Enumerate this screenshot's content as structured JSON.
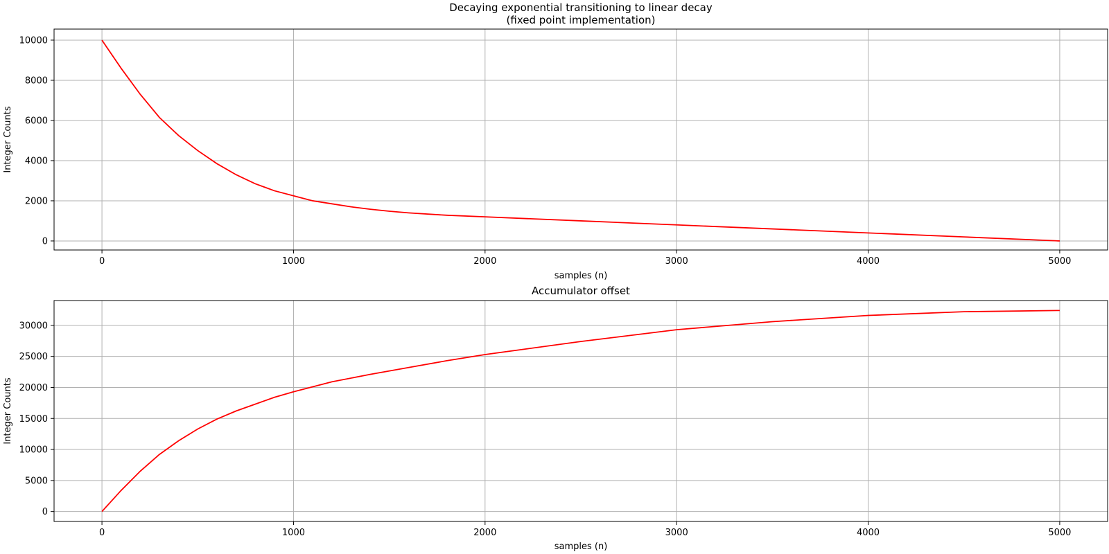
{
  "chart_data": [
    {
      "type": "line",
      "title": "Decaying exponential transitioning to linear decay",
      "subtitle": "(fixed point implementation)",
      "xlabel": "samples (n)",
      "ylabel": "Integer Counts",
      "xlim": [
        -250,
        5250
      ],
      "ylim": [
        -450,
        10550
      ],
      "xticks": [
        0,
        1000,
        2000,
        3000,
        4000,
        5000
      ],
      "yticks": [
        0,
        2000,
        4000,
        6000,
        8000,
        10000
      ],
      "grid": true,
      "series": [
        {
          "color": "#ff0000",
          "x": [
            0,
            100,
            200,
            300,
            400,
            500,
            600,
            700,
            800,
            900,
            1000,
            1100,
            1200,
            1300,
            1400,
            1500,
            1600,
            1800,
            2000,
            2500,
            3000,
            3500,
            4000,
            4500,
            5000
          ],
          "y": [
            10000,
            8600,
            7300,
            6150,
            5250,
            4500,
            3850,
            3300,
            2850,
            2500,
            2250,
            2000,
            1850,
            1700,
            1580,
            1480,
            1400,
            1280,
            1200,
            1000,
            800,
            600,
            400,
            200,
            0
          ]
        }
      ]
    },
    {
      "type": "line",
      "title": "Accumulator offset",
      "xlabel": "samples (n)",
      "ylabel": "Integer Counts",
      "xlim": [
        -250,
        5250
      ],
      "ylim": [
        -1600,
        34000
      ],
      "xticks": [
        0,
        1000,
        2000,
        3000,
        4000,
        5000
      ],
      "yticks": [
        0,
        5000,
        10000,
        15000,
        20000,
        25000,
        30000
      ],
      "grid": true,
      "series": [
        {
          "color": "#ff0000",
          "x": [
            0,
            100,
            200,
            300,
            400,
            500,
            600,
            700,
            800,
            900,
            1000,
            1200,
            1400,
            1600,
            1800,
            2000,
            2500,
            3000,
            3500,
            4000,
            4500,
            5000
          ],
          "y": [
            0,
            3400,
            6500,
            9200,
            11400,
            13300,
            14900,
            16200,
            17300,
            18400,
            19300,
            20900,
            22100,
            23200,
            24300,
            25300,
            27400,
            29300,
            30600,
            31600,
            32200,
            32400
          ]
        }
      ]
    }
  ]
}
